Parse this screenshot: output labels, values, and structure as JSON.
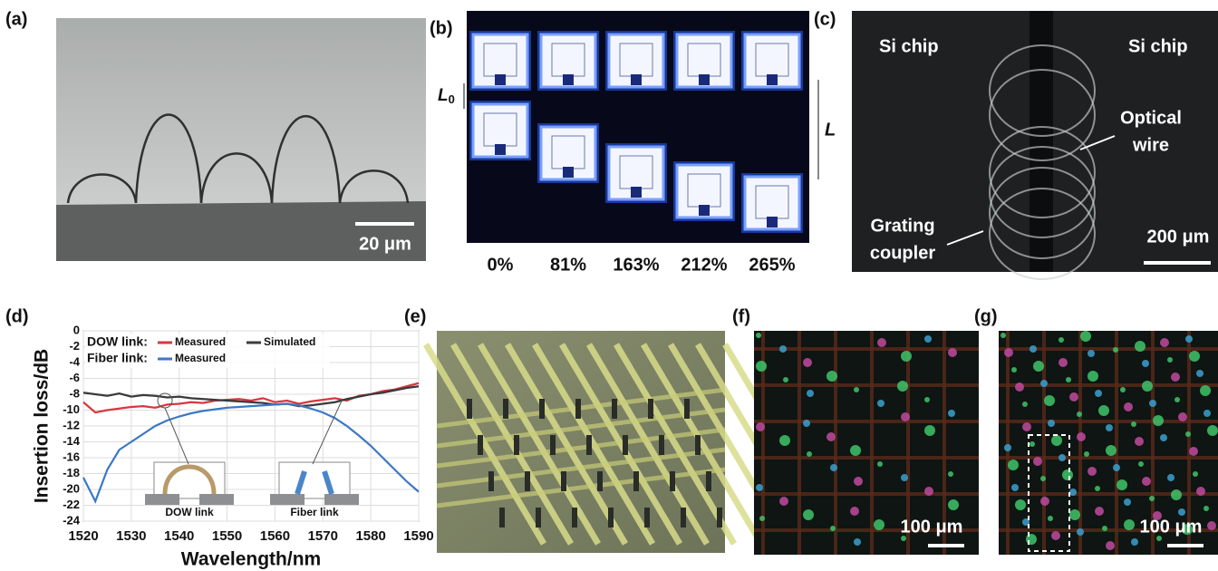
{
  "panels": {
    "a": {
      "label": "(a)",
      "scale_bar": "20 μm"
    },
    "b": {
      "label": "(b)",
      "strains": [
        "0%",
        "81%",
        "163%",
        "212%",
        "265%"
      ],
      "L0": "L",
      "L0_sub": "0",
      "L": "L"
    },
    "c": {
      "label": "(c)",
      "left_chip": "Si chip",
      "right_chip": "Si chip",
      "wire": [
        "Optical",
        "wire"
      ],
      "coupler": [
        "Grating",
        "coupler"
      ],
      "scale_bar": "200 μm"
    },
    "d": {
      "label": "(d)"
    },
    "e": {
      "label": "(e)"
    },
    "f": {
      "label": "(f)",
      "scale_bar": "100 μm"
    },
    "g": {
      "label": "(g)",
      "scale_bar": "100 μm"
    }
  },
  "chart_data": {
    "type": "line",
    "x_label": "Wavelength/nm",
    "y_label": "Insertion loss/dB",
    "legend_groups": [
      "DOW link:",
      "Fiber link:"
    ],
    "insets": [
      "DOW link",
      "Fiber link"
    ],
    "x": [
      1520,
      1522.5,
      1525,
      1527.5,
      1530,
      1532.5,
      1535,
      1537.5,
      1540,
      1542.5,
      1545,
      1547.5,
      1550,
      1552.5,
      1555,
      1557.5,
      1560,
      1562.5,
      1565,
      1567.5,
      1570,
      1572.5,
      1575,
      1577.5,
      1580,
      1582.5,
      1585,
      1587.5,
      1590
    ],
    "series": [
      {
        "name": "Measured",
        "color": "#d9363e",
        "values": [
          -9,
          -10.3,
          -10,
          -9.8,
          -9.6,
          -9.5,
          -9.7,
          -9.3,
          -9.2,
          -9,
          -9.1,
          -8.8,
          -8.7,
          -8.6,
          -8.8,
          -8.5,
          -9,
          -8.8,
          -9.2,
          -8.9,
          -8.7,
          -8.5,
          -8.8,
          -8.2,
          -8,
          -7.6,
          -7.4,
          -7,
          -6.6
        ]
      },
      {
        "name": "Simulated",
        "color": "#3a3a3a",
        "values": [
          -7.8,
          -8,
          -8.2,
          -7.9,
          -8.3,
          -8.1,
          -8.2,
          -8.4,
          -8.3,
          -8.5,
          -8.6,
          -8.7,
          -8.8,
          -8.9,
          -9,
          -9.1,
          -9.3,
          -9.2,
          -9.5,
          -9.4,
          -9.2,
          -9,
          -8.6,
          -8.3,
          -8,
          -7.8,
          -7.5,
          -7.2,
          -7
        ]
      },
      {
        "name": "Measured",
        "color": "#3b78c4",
        "values": [
          -18.5,
          -21.5,
          -17.5,
          -15,
          -14,
          -13,
          -12,
          -11.3,
          -10.8,
          -10.4,
          -10.1,
          -9.9,
          -9.7,
          -9.6,
          -9.5,
          -9.4,
          -9.3,
          -9.2,
          -9.4,
          -9.8,
          -10.3,
          -11,
          -12,
          -13.2,
          -14.5,
          -16,
          -17.5,
          -19,
          -20.3
        ]
      }
    ],
    "xlim": [
      1520,
      1590
    ],
    "xticks": [
      1520,
      1530,
      1540,
      1550,
      1560,
      1570,
      1580,
      1590
    ],
    "ylim": [
      -24,
      0
    ],
    "yticks": [
      -24,
      -22,
      -20,
      -18,
      -16,
      -14,
      -12,
      -10,
      -8,
      -6,
      -4,
      -2,
      0
    ],
    "grid": true
  }
}
